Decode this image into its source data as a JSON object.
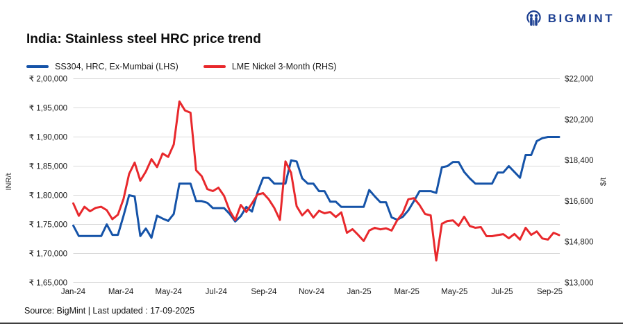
{
  "brand": {
    "logo_text": "BIGMINT",
    "logo_color": "#1c3f91"
  },
  "chart_data": {
    "type": "line",
    "title": "India: Stainless steel HRC price trend",
    "frequency": "weekly",
    "grid": "horizontal",
    "legend_position": "top-left",
    "x_tick_labels": [
      "Jan-24",
      "Mar-24",
      "May-24",
      "Jul-24",
      "Sep-24",
      "Nov-24",
      "Jan-25",
      "Mar-25",
      "May-25",
      "Jul-25",
      "Sep-25"
    ],
    "left_axis": {
      "label": "INR/t",
      "min": 165000,
      "max": 200000,
      "tick_labels": [
        "₹ 2,00,000",
        "₹ 1,95,000",
        "₹ 1,90,000",
        "₹ 1,85,000",
        "₹ 1,80,000",
        "₹ 1,75,000",
        "₹ 1,70,000",
        "₹ 1,65,000"
      ]
    },
    "right_axis": {
      "label": "$/t",
      "min": 13000,
      "max": 22000,
      "tick_labels": [
        "$22,000",
        "$20,200",
        "$18,400",
        "$16,600",
        "$14,800",
        "$13,000"
      ]
    },
    "series": [
      {
        "name": "SS304, HRC, Ex-Mumbai (LHS)",
        "axis": "left",
        "color": "#1553a8",
        "values": [
          174800,
          173000,
          173000,
          173000,
          173000,
          173000,
          175000,
          173200,
          173200,
          176500,
          180000,
          179800,
          173000,
          174300,
          172700,
          176500,
          176000,
          175600,
          176800,
          182000,
          182000,
          182000,
          179000,
          179000,
          178700,
          177800,
          177800,
          177800,
          176800,
          175500,
          176400,
          178000,
          177200,
          180500,
          183000,
          183000,
          182000,
          182000,
          182000,
          186000,
          185800,
          182900,
          182000,
          182000,
          180700,
          180700,
          178900,
          178900,
          178000,
          178000,
          178000,
          178000,
          178000,
          180900,
          179800,
          178800,
          178800,
          176200,
          175800,
          176300,
          177400,
          179000,
          180700,
          180700,
          180700,
          180400,
          184800,
          185000,
          185700,
          185700,
          184000,
          182900,
          182000,
          182000,
          182000,
          182000,
          183900,
          183900,
          185000,
          184000,
          183000,
          186900,
          186900,
          189300,
          189800,
          190000,
          190000,
          190000
        ]
      },
      {
        "name": "LME Nickel 3-Month (RHS)",
        "axis": "right",
        "color": "#e8282c",
        "values": [
          16500,
          15950,
          16350,
          16150,
          16300,
          16350,
          16200,
          15800,
          16000,
          16700,
          17800,
          18300,
          17500,
          17900,
          18450,
          18100,
          18700,
          18550,
          19100,
          21000,
          20600,
          20500,
          17960,
          17700,
          17130,
          17040,
          17190,
          16830,
          16180,
          15760,
          16430,
          16120,
          16500,
          16890,
          16950,
          16680,
          16300,
          15770,
          18350,
          17850,
          16375,
          15970,
          16220,
          15870,
          16170,
          16060,
          16120,
          15900,
          16100,
          15200,
          15360,
          15110,
          14840,
          15300,
          15420,
          15350,
          15400,
          15300,
          15750,
          16070,
          16680,
          16730,
          16430,
          16030,
          15970,
          13980,
          15600,
          15720,
          15750,
          15510,
          15910,
          15500,
          15420,
          15450,
          15050,
          15050,
          15100,
          15140,
          14960,
          15150,
          14900,
          15420,
          15110,
          15260,
          14950,
          14900,
          15200,
          15100
        ]
      }
    ]
  },
  "footer": {
    "source_line": "Source: BigMint | Last updated : 17-09-2025"
  }
}
